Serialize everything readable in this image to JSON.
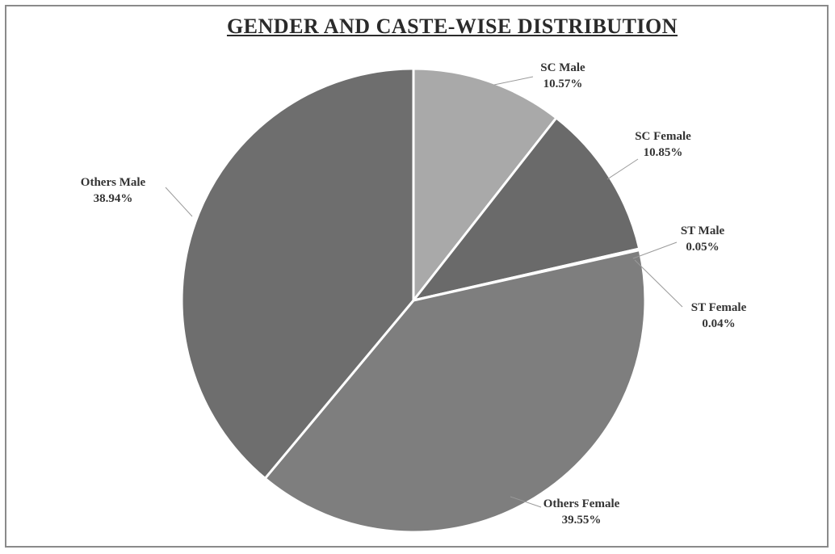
{
  "chart_data": {
    "type": "pie",
    "title": "GENDER AND CASTE-WISE DISTRIBUTION",
    "slices": [
      {
        "name": "SC Male",
        "value": 10.57,
        "label": "10.57%",
        "color": "#a9a9a9"
      },
      {
        "name": "SC Female",
        "value": 10.85,
        "label": "10.85%",
        "color": "#6a6a6a"
      },
      {
        "name": "ST Male",
        "value": 0.05,
        "label": "0.05%",
        "color": "#bdbdbd"
      },
      {
        "name": "ST Female",
        "value": 0.04,
        "label": "0.04%",
        "color": "#9a9a9a"
      },
      {
        "name": "Others Female",
        "value": 39.55,
        "label": "39.55%",
        "color": "#7e7e7e"
      },
      {
        "name": "Others Male",
        "value": 38.94,
        "label": "38.94%",
        "color": "#6e6e6e"
      }
    ],
    "start_angle_deg": 0,
    "direction": "clockwise",
    "legend": "none",
    "data_labels": "outside-with-leader-lines"
  }
}
